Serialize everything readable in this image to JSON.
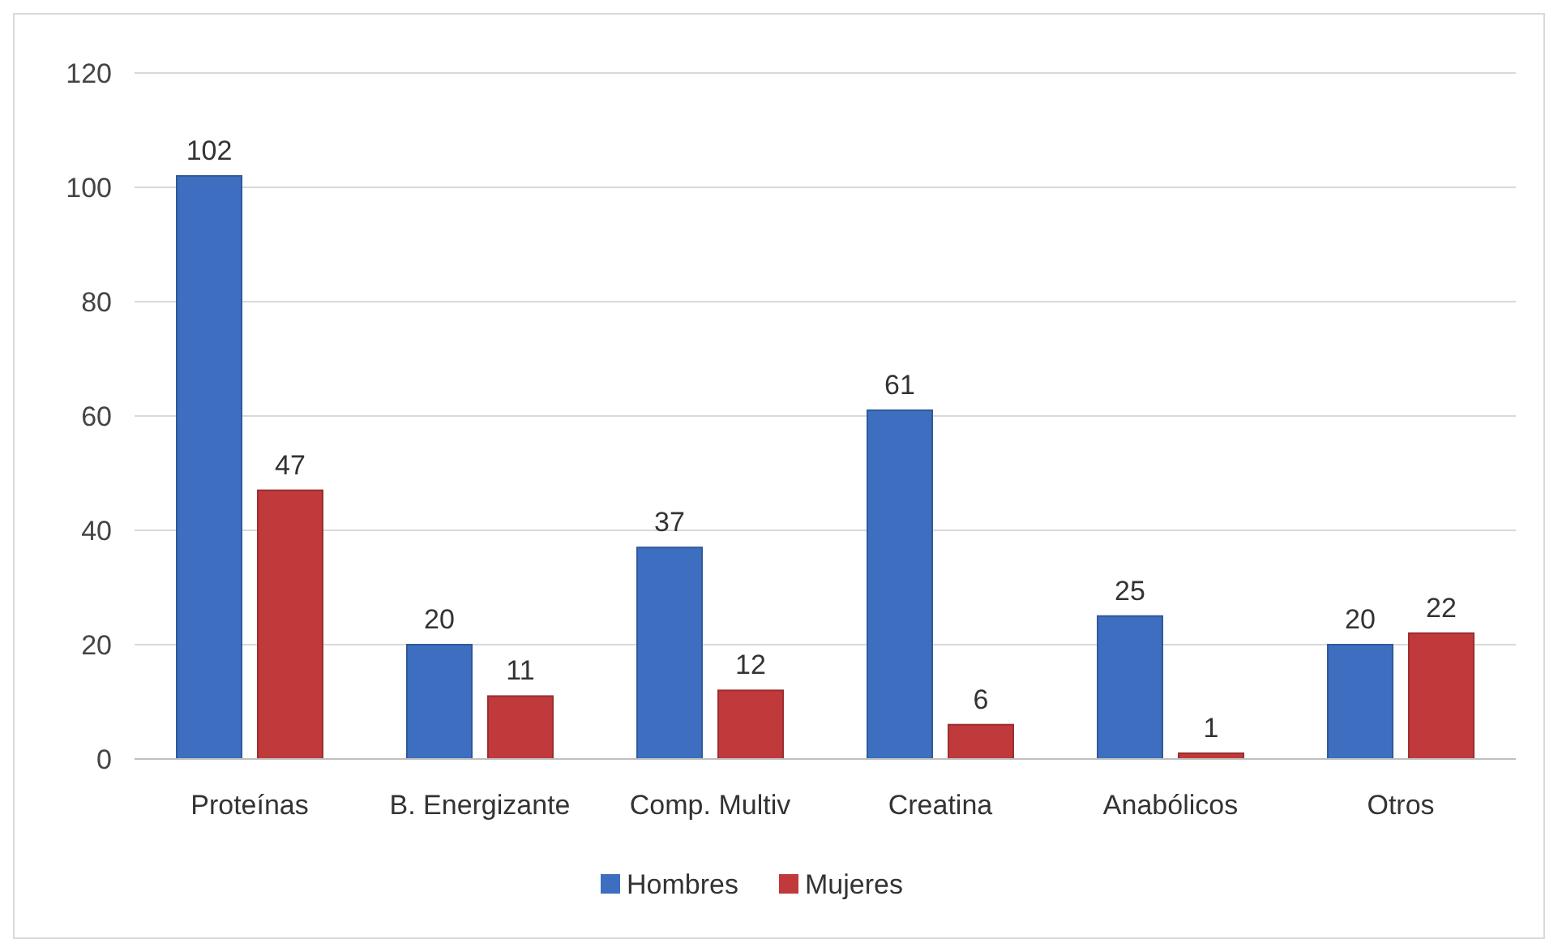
{
  "chart_data": {
    "type": "bar",
    "categories": [
      "Proteínas",
      "B. Energizante",
      "Comp. Multiv",
      "Creatina",
      "Anabólicos",
      "Otros"
    ],
    "series": [
      {
        "name": "Hombres",
        "color": "#3d6ebf",
        "values": [
          102,
          20,
          37,
          61,
          25,
          20
        ]
      },
      {
        "name": "Mujeres",
        "color": "#c0393b",
        "values": [
          47,
          11,
          12,
          6,
          1,
          22
        ]
      }
    ],
    "ylim": [
      0,
      120
    ],
    "yticks": [
      0,
      20,
      40,
      60,
      80,
      100,
      120
    ],
    "grid": "y",
    "legend": "bottom",
    "data_labels": true
  }
}
